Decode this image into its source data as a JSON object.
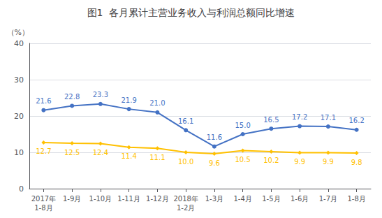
{
  "chart_data": {
    "type": "line",
    "title": "图1  各月累计主营业务收入与利润总额同比增速",
    "ylabel": "（%）",
    "categories": [
      "2017年\n1-8月",
      "1-9月",
      "1-10月",
      "1-11月",
      "1-12月",
      "2018年\n1-2月",
      "1-3月",
      "1-4月",
      "1-5月",
      "1-6月",
      "1-7月",
      "1-8月"
    ],
    "series": [
      {
        "color": "#4472C4",
        "marker": "circle",
        "values": [
          21.6,
          22.8,
          23.3,
          21.9,
          21.0,
          16.1,
          11.6,
          15.0,
          16.5,
          17.2,
          17.1,
          16.2
        ],
        "value_labels": [
          "21.6",
          "22.8",
          "23.3",
          "21.9",
          "21.0",
          "16.1",
          "11.6",
          "15.0",
          "16.5",
          "17.2",
          "17.1",
          "16.2"
        ]
      },
      {
        "color": "#FFC000",
        "marker": "diamond",
        "values": [
          12.7,
          12.5,
          12.4,
          11.4,
          11.1,
          10.0,
          9.6,
          10.5,
          10.2,
          9.9,
          9.9,
          9.8
        ],
        "value_labels": [
          "12.7",
          "12.5",
          "12.4",
          "11.4",
          "11.1",
          "10.0",
          "9.6",
          "10.5",
          "10.2",
          "9.9",
          "9.9",
          "9.8"
        ]
      }
    ],
    "ylim": [
      0,
      40
    ],
    "yticks": [
      0,
      10,
      20,
      30,
      40
    ],
    "grid": true,
    "data_labels": true
  }
}
